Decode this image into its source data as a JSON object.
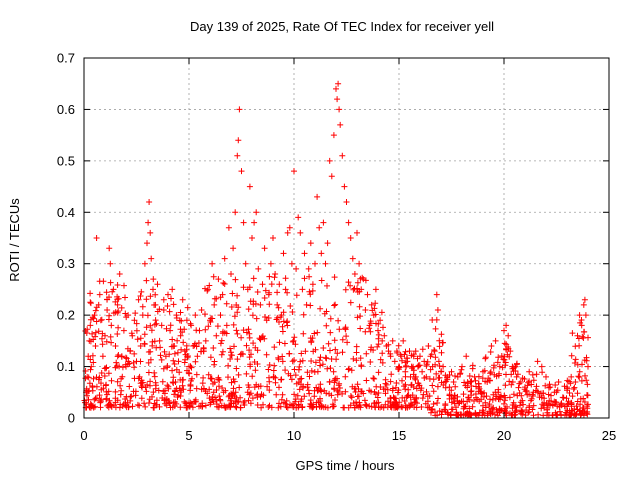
{
  "chart_data": {
    "type": "scatter",
    "title": "Day 139 of 2025, Rate Of TEC Index for receiver yell",
    "xlabel": "GPS time / hours",
    "ylabel": "ROTI / TECUs",
    "xlim": [
      0,
      25
    ],
    "ylim": [
      0,
      0.7
    ],
    "xticks": [
      0,
      5,
      10,
      15,
      20,
      25
    ],
    "xtick_labels": [
      "0",
      "5",
      "10",
      "15",
      "20",
      "25"
    ],
    "yticks": [
      0,
      0.1,
      0.2,
      0.3,
      0.4,
      0.5,
      0.6,
      0.7
    ],
    "ytick_labels": [
      "0",
      "0.1",
      "0.2",
      "0.3",
      "0.4",
      "0.5",
      "0.6",
      "0.7"
    ],
    "grid": true,
    "marker": "+",
    "marker_color": "#ff0000",
    "series": [
      {
        "name": "ROTI",
        "points": [
          [
            0.05,
            0.03
          ],
          [
            0.1,
            0.05
          ],
          [
            0.15,
            0.08
          ],
          [
            0.2,
            0.12
          ],
          [
            0.25,
            0.15
          ],
          [
            0.3,
            0.18
          ],
          [
            0.35,
            0.1
          ],
          [
            0.4,
            0.06
          ],
          [
            0.5,
            0.2
          ],
          [
            0.55,
            0.14
          ],
          [
            0.6,
            0.35
          ],
          [
            0.7,
            0.22
          ],
          [
            0.75,
            0.24
          ],
          [
            0.8,
            0.19
          ],
          [
            0.9,
            0.12
          ],
          [
            1.0,
            0.16
          ],
          [
            1.1,
            0.21
          ],
          [
            1.2,
            0.33
          ],
          [
            1.25,
            0.3
          ],
          [
            1.3,
            0.18
          ],
          [
            1.4,
            0.25
          ],
          [
            1.5,
            0.14
          ],
          [
            1.6,
            0.22
          ],
          [
            1.7,
            0.28
          ],
          [
            1.8,
            0.12
          ],
          [
            1.9,
            0.17
          ],
          [
            2.0,
            0.1
          ],
          [
            2.1,
            0.2
          ],
          [
            2.2,
            0.13
          ],
          [
            2.3,
            0.16
          ],
          [
            2.4,
            0.19
          ],
          [
            2.5,
            0.11
          ],
          [
            2.6,
            0.23
          ],
          [
            2.7,
            0.14
          ],
          [
            2.8,
            0.2
          ],
          [
            2.9,
            0.3
          ],
          [
            3.0,
            0.34
          ],
          [
            3.05,
            0.38
          ],
          [
            3.1,
            0.42
          ],
          [
            3.15,
            0.36
          ],
          [
            3.2,
            0.31
          ],
          [
            3.3,
            0.27
          ],
          [
            3.4,
            0.22
          ],
          [
            3.5,
            0.26
          ],
          [
            3.6,
            0.15
          ],
          [
            3.7,
            0.18
          ],
          [
            3.8,
            0.21
          ],
          [
            3.9,
            0.12
          ],
          [
            4.0,
            0.24
          ],
          [
            4.1,
            0.17
          ],
          [
            4.2,
            0.25
          ],
          [
            4.3,
            0.14
          ],
          [
            4.4,
            0.2
          ],
          [
            4.5,
            0.11
          ],
          [
            4.6,
            0.16
          ],
          [
            4.7,
            0.23
          ],
          [
            4.8,
            0.13
          ],
          [
            4.9,
            0.19
          ],
          [
            5.0,
            0.1
          ],
          [
            5.1,
            0.18
          ],
          [
            5.2,
            0.14
          ],
          [
            5.3,
            0.2
          ],
          [
            5.4,
            0.12
          ],
          [
            5.5,
            0.17
          ],
          [
            5.6,
            0.21
          ],
          [
            5.7,
            0.13
          ],
          [
            5.8,
            0.15
          ],
          [
            5.9,
            0.25
          ],
          [
            6.0,
            0.19
          ],
          [
            6.1,
            0.3
          ],
          [
            6.2,
            0.22
          ],
          [
            6.3,
            0.16
          ],
          [
            6.4,
            0.27
          ],
          [
            6.5,
            0.2
          ],
          [
            6.6,
            0.24
          ],
          [
            6.7,
            0.31
          ],
          [
            6.8,
            0.18
          ],
          [
            6.9,
            0.37
          ],
          [
            7.0,
            0.28
          ],
          [
            7.1,
            0.33
          ],
          [
            7.2,
            0.4
          ],
          [
            7.3,
            0.51
          ],
          [
            7.35,
            0.54
          ],
          [
            7.4,
            0.6
          ],
          [
            7.5,
            0.48
          ],
          [
            7.6,
            0.38
          ],
          [
            7.7,
            0.3
          ],
          [
            7.8,
            0.25
          ],
          [
            7.9,
            0.45
          ],
          [
            8.0,
            0.35
          ],
          [
            8.1,
            0.38
          ],
          [
            8.2,
            0.4
          ],
          [
            8.3,
            0.29
          ],
          [
            8.4,
            0.22
          ],
          [
            8.5,
            0.26
          ],
          [
            8.6,
            0.33
          ],
          [
            8.7,
            0.19
          ],
          [
            8.8,
            0.24
          ],
          [
            8.9,
            0.3
          ],
          [
            9.0,
            0.35
          ],
          [
            9.1,
            0.28
          ],
          [
            9.2,
            0.22
          ],
          [
            9.3,
            0.26
          ],
          [
            9.4,
            0.2
          ],
          [
            9.5,
            0.32
          ],
          [
            9.6,
            0.25
          ],
          [
            9.7,
            0.36
          ],
          [
            9.8,
            0.37
          ],
          [
            9.9,
            0.3
          ],
          [
            10.0,
            0.48
          ],
          [
            10.1,
            0.29
          ],
          [
            10.2,
            0.39
          ],
          [
            10.3,
            0.36
          ],
          [
            10.4,
            0.25
          ],
          [
            10.5,
            0.32
          ],
          [
            10.6,
            0.22
          ],
          [
            10.7,
            0.29
          ],
          [
            10.8,
            0.34
          ],
          [
            10.9,
            0.26
          ],
          [
            11.0,
            0.3
          ],
          [
            11.1,
            0.43
          ],
          [
            11.2,
            0.37
          ],
          [
            11.3,
            0.32
          ],
          [
            11.4,
            0.38
          ],
          [
            11.5,
            0.3
          ],
          [
            11.6,
            0.34
          ],
          [
            11.7,
            0.5
          ],
          [
            11.8,
            0.47
          ],
          [
            11.9,
            0.55
          ],
          [
            12.0,
            0.64
          ],
          [
            12.05,
            0.62
          ],
          [
            12.1,
            0.65
          ],
          [
            12.15,
            0.6
          ],
          [
            12.2,
            0.57
          ],
          [
            12.3,
            0.51
          ],
          [
            12.4,
            0.45
          ],
          [
            12.5,
            0.42
          ],
          [
            12.6,
            0.38
          ],
          [
            12.7,
            0.35
          ],
          [
            12.8,
            0.31
          ],
          [
            12.9,
            0.28
          ],
          [
            13.0,
            0.36
          ],
          [
            13.1,
            0.3
          ],
          [
            13.2,
            0.25
          ],
          [
            13.3,
            0.27
          ],
          [
            13.4,
            0.21
          ],
          [
            13.5,
            0.24
          ],
          [
            13.6,
            0.18
          ],
          [
            13.7,
            0.22
          ],
          [
            13.8,
            0.2
          ],
          [
            13.9,
            0.25
          ],
          [
            14.0,
            0.17
          ],
          [
            14.1,
            0.19
          ],
          [
            14.2,
            0.15
          ],
          [
            14.3,
            0.16
          ],
          [
            14.4,
            0.14
          ],
          [
            14.5,
            0.13
          ],
          [
            14.6,
            0.12
          ],
          [
            14.7,
            0.15
          ],
          [
            14.8,
            0.11
          ],
          [
            14.9,
            0.13
          ],
          [
            15.0,
            0.1
          ],
          [
            15.1,
            0.12
          ],
          [
            15.2,
            0.15
          ],
          [
            15.3,
            0.09
          ],
          [
            15.4,
            0.11
          ],
          [
            15.5,
            0.13
          ],
          [
            15.6,
            0.1
          ],
          [
            15.7,
            0.12
          ],
          [
            15.8,
            0.08
          ],
          [
            15.9,
            0.1
          ],
          [
            16.0,
            0.12
          ],
          [
            16.1,
            0.09
          ],
          [
            16.2,
            0.11
          ],
          [
            16.3,
            0.08
          ],
          [
            16.4,
            0.14
          ],
          [
            16.5,
            0.12
          ],
          [
            16.6,
            0.1
          ],
          [
            16.7,
            0.13
          ],
          [
            16.8,
            0.24
          ],
          [
            16.85,
            0.21
          ],
          [
            16.9,
            0.11
          ],
          [
            17.0,
            0.09
          ],
          [
            17.1,
            0.1
          ],
          [
            17.2,
            0.07
          ],
          [
            17.3,
            0.08
          ],
          [
            17.4,
            0.06
          ],
          [
            17.5,
            0.09
          ],
          [
            17.6,
            0.07
          ],
          [
            17.8,
            0.08
          ],
          [
            18.0,
            0.1
          ],
          [
            18.2,
            0.12
          ],
          [
            18.4,
            0.07
          ],
          [
            18.6,
            0.08
          ],
          [
            18.8,
            0.06
          ],
          [
            19.0,
            0.09
          ],
          [
            19.2,
            0.07
          ],
          [
            19.4,
            0.14
          ],
          [
            19.6,
            0.15
          ],
          [
            19.8,
            0.1
          ],
          [
            20.0,
            0.17
          ],
          [
            20.1,
            0.18
          ],
          [
            20.2,
            0.16
          ],
          [
            20.3,
            0.13
          ],
          [
            20.4,
            0.1
          ],
          [
            20.6,
            0.08
          ],
          [
            20.8,
            0.07
          ],
          [
            21.0,
            0.06
          ],
          [
            21.2,
            0.09
          ],
          [
            21.4,
            0.05
          ],
          [
            21.6,
            0.11
          ],
          [
            21.8,
            0.1
          ],
          [
            22.0,
            0.08
          ],
          [
            22.2,
            0.06
          ],
          [
            22.4,
            0.05
          ],
          [
            22.6,
            0.07
          ],
          [
            22.8,
            0.04
          ],
          [
            23.0,
            0.06
          ],
          [
            23.2,
            0.08
          ],
          [
            23.4,
            0.07
          ],
          [
            23.5,
            0.16
          ],
          [
            23.6,
            0.2
          ],
          [
            23.7,
            0.18
          ],
          [
            23.8,
            0.22
          ],
          [
            23.85,
            0.23
          ],
          [
            23.9,
            0.2
          ],
          [
            24.0,
            0.1
          ]
        ]
      }
    ]
  }
}
